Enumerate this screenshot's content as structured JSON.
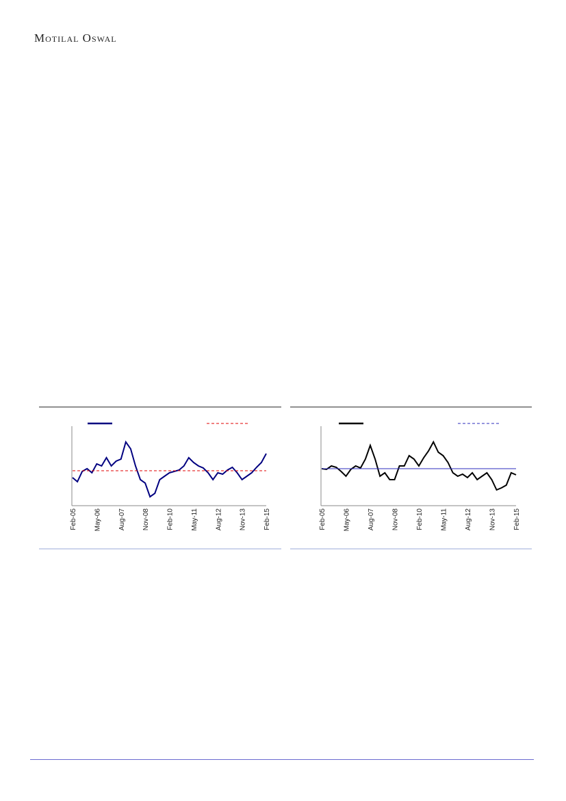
{
  "header": {
    "brand": "Motilal Oswal"
  },
  "chart_data": [
    {
      "type": "line",
      "categories": [
        "Feb-05",
        null,
        null,
        null,
        null,
        "May-06",
        null,
        null,
        null,
        null,
        "Aug-07",
        null,
        null,
        null,
        null,
        "Nov-08",
        null,
        null,
        null,
        null,
        "Feb-10",
        null,
        null,
        null,
        null,
        "May-11",
        null,
        null,
        null,
        null,
        "Aug-12",
        null,
        null,
        null,
        null,
        "Nov-13",
        null,
        null,
        null,
        null,
        "Feb-15"
      ],
      "ylim": [
        0,
        116
      ],
      "series": [
        {
          "color": "#000080",
          "values": [
            41,
            35,
            50,
            54,
            48,
            61,
            58,
            70,
            58,
            65,
            68,
            93,
            83,
            58,
            38,
            33,
            13,
            18,
            38,
            43,
            48,
            50,
            52,
            58,
            70,
            63,
            58,
            55,
            48,
            38,
            48,
            46,
            52,
            56,
            48,
            38,
            43,
            48,
            56,
            63,
            76
          ]
        },
        {
          "color": "#e00000",
          "dash": true,
          "values": [
            51,
            51,
            51,
            51,
            51,
            51,
            51,
            51,
            51,
            51,
            51,
            51,
            51,
            51,
            51,
            51,
            51,
            51,
            51,
            51,
            51,
            51,
            51,
            51,
            51,
            51,
            51,
            51,
            51,
            51,
            51,
            51,
            51,
            51,
            51,
            51,
            51,
            51,
            51,
            51,
            51
          ]
        }
      ]
    },
    {
      "type": "line",
      "categories": [
        "Feb-05",
        null,
        null,
        null,
        null,
        "May-06",
        null,
        null,
        null,
        null,
        "Aug-07",
        null,
        null,
        null,
        null,
        "Nov-08",
        null,
        null,
        null,
        null,
        "Feb-10",
        null,
        null,
        null,
        null,
        "May-11",
        null,
        null,
        null,
        null,
        "Aug-12",
        null,
        null,
        null,
        null,
        "Nov-13",
        null,
        null,
        null,
        null,
        "Feb-15"
      ],
      "ylim": [
        0,
        116
      ],
      "series": [
        {
          "color": "#000000",
          "values": [
            54,
            53,
            58,
            56,
            50,
            43,
            53,
            58,
            55,
            68,
            88,
            68,
            43,
            48,
            38,
            38,
            58,
            58,
            73,
            68,
            58,
            70,
            80,
            93,
            78,
            73,
            63,
            48,
            43,
            46,
            41,
            48,
            38,
            43,
            48,
            38,
            23,
            26,
            30,
            48,
            45
          ]
        },
        {
          "color": "#2b2bbd",
          "values": [
            54,
            54,
            54,
            54,
            54,
            54,
            54,
            54,
            54,
            54,
            54,
            54,
            54,
            54,
            54,
            54,
            54,
            54,
            54,
            54,
            54,
            54,
            54,
            54,
            54,
            54,
            54,
            54,
            54,
            54,
            54,
            54,
            54,
            54,
            54,
            54,
            54,
            54,
            54,
            54,
            54
          ]
        }
      ]
    }
  ]
}
